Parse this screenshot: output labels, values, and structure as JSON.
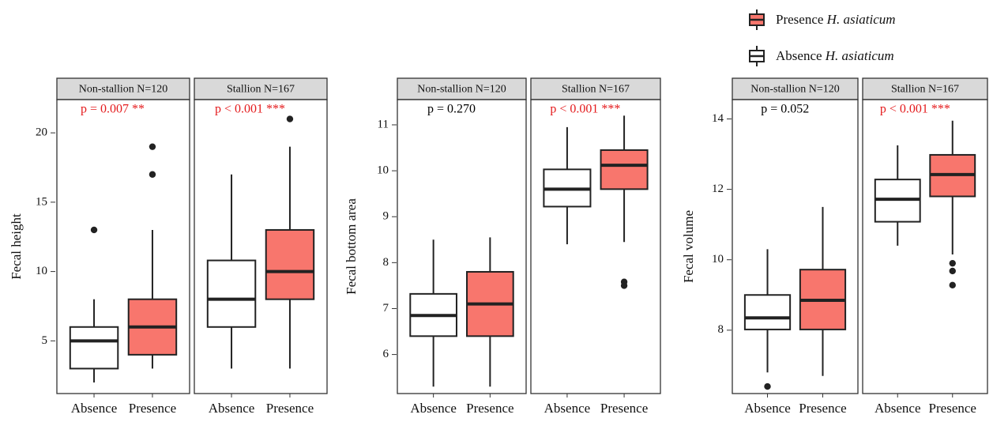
{
  "legend": {
    "items": [
      {
        "prefix": "Presence ",
        "species": "H. asiaticum",
        "fill": "#F8766D"
      },
      {
        "prefix": "Absence ",
        "species": "H. asiaticum",
        "fill": "#FFFFFF"
      }
    ]
  },
  "colors": {
    "presence": "#F8766D",
    "absence": "#FFFFFF",
    "significant": "#E41A1C",
    "nonsignificant": "#000000",
    "strip_bg": "#D9D9D9",
    "box_line": "#222222"
  },
  "chart_data": [
    {
      "type": "box",
      "ylabel": "Fecal height",
      "ylim": [
        1.2,
        22.4
      ],
      "yticks": [
        5,
        10,
        15,
        20
      ],
      "categories": [
        "Absence",
        "Presence"
      ],
      "panels": [
        {
          "strip": "Non-stallion N=120",
          "pvalue": "p = 0.007 **",
          "significant": true,
          "boxes": [
            {
              "group": "Absence",
              "whisker_low": 2,
              "q1": 3,
              "median": 5,
              "q3": 6,
              "whisker_high": 8,
              "outliers": [
                13
              ]
            },
            {
              "group": "Presence",
              "whisker_low": 3,
              "q1": 4,
              "median": 6,
              "q3": 8,
              "whisker_high": 13,
              "outliers": [
                17,
                19
              ]
            }
          ]
        },
        {
          "strip": "Stallion N=167",
          "pvalue": "p < 0.001 ***",
          "significant": true,
          "boxes": [
            {
              "group": "Absence",
              "whisker_low": 3,
              "q1": 6,
              "median": 8,
              "q3": 10.8,
              "whisker_high": 17,
              "outliers": []
            },
            {
              "group": "Presence",
              "whisker_low": 3,
              "q1": 8,
              "median": 10,
              "q3": 13,
              "whisker_high": 19,
              "outliers": [
                21
              ]
            }
          ]
        }
      ]
    },
    {
      "type": "box",
      "ylabel": "Fecal bottom area",
      "ylim": [
        5.15,
        11.55
      ],
      "yticks": [
        6,
        7,
        8,
        9,
        10,
        11
      ],
      "categories": [
        "Absence",
        "Presence"
      ],
      "panels": [
        {
          "strip": "Non-stallion N=120",
          "pvalue": "p = 0.270",
          "significant": false,
          "boxes": [
            {
              "group": "Absence",
              "whisker_low": 5.3,
              "q1": 6.4,
              "median": 6.85,
              "q3": 7.32,
              "whisker_high": 8.5,
              "outliers": []
            },
            {
              "group": "Presence",
              "whisker_low": 5.3,
              "q1": 6.4,
              "median": 7.1,
              "q3": 7.8,
              "whisker_high": 8.55,
              "outliers": []
            }
          ]
        },
        {
          "strip": "Stallion N=167",
          "pvalue": "p < 0.001 ***",
          "significant": true,
          "boxes": [
            {
              "group": "Absence",
              "whisker_low": 8.4,
              "q1": 9.22,
              "median": 9.6,
              "q3": 10.03,
              "whisker_high": 10.95,
              "outliers": []
            },
            {
              "group": "Presence",
              "whisker_low": 8.45,
              "q1": 9.6,
              "median": 10.12,
              "q3": 10.45,
              "whisker_high": 11.2,
              "outliers": [
                7.5,
                7.58
              ]
            }
          ]
        }
      ]
    },
    {
      "type": "box",
      "ylabel": "Fecal volume",
      "ylim": [
        6.2,
        14.55
      ],
      "yticks": [
        8,
        10,
        12,
        14
      ],
      "categories": [
        "Absence",
        "Presence"
      ],
      "panels": [
        {
          "strip": "Non-stallion N=120",
          "pvalue": "p = 0.052",
          "significant": false,
          "boxes": [
            {
              "group": "Absence",
              "whisker_low": 6.8,
              "q1": 8.02,
              "median": 8.35,
              "q3": 9.0,
              "whisker_high": 10.3,
              "outliers": [
                6.4
              ]
            },
            {
              "group": "Presence",
              "whisker_low": 6.7,
              "q1": 8.02,
              "median": 8.85,
              "q3": 9.72,
              "whisker_high": 11.5,
              "outliers": []
            }
          ]
        },
        {
          "strip": "Stallion N=167",
          "pvalue": "p < 0.001 ***",
          "significant": true,
          "boxes": [
            {
              "group": "Absence",
              "whisker_low": 10.4,
              "q1": 11.08,
              "median": 11.72,
              "q3": 12.28,
              "whisker_high": 13.25,
              "outliers": []
            },
            {
              "group": "Presence",
              "whisker_low": 10.15,
              "q1": 11.8,
              "median": 12.42,
              "q3": 12.98,
              "whisker_high": 13.95,
              "outliers": [
                9.28,
                9.68,
                9.9
              ]
            }
          ]
        }
      ]
    }
  ]
}
